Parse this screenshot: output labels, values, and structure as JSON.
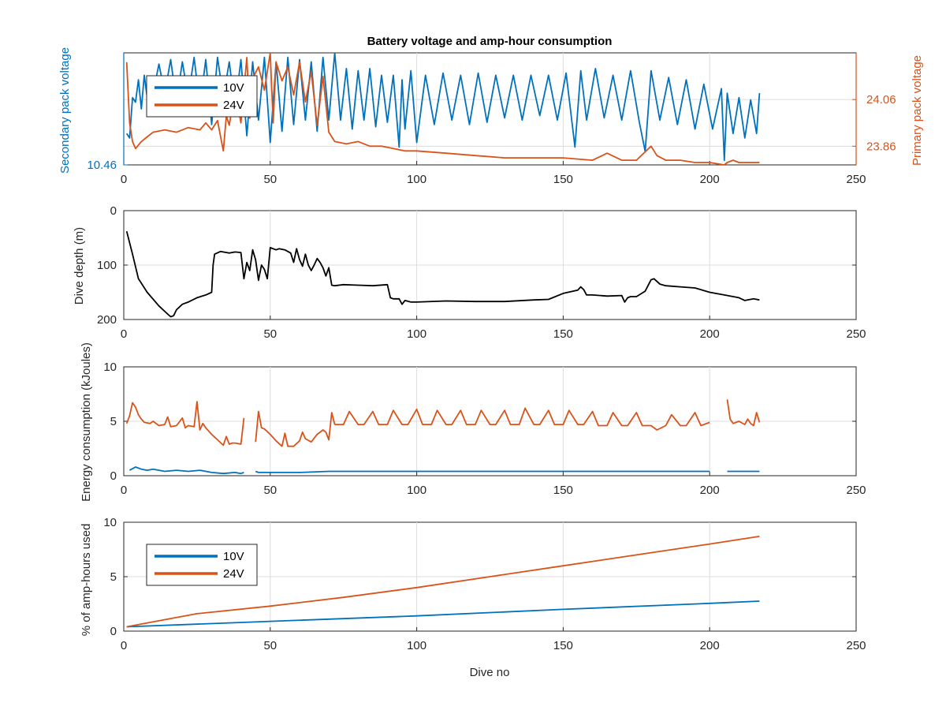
{
  "chart_data": [
    {
      "type": "line",
      "title": "Battery voltage and amp-hour consumption",
      "xlabel": "",
      "ylabel_left": "Secondary pack voltage",
      "ylabel_right": "Primary pack voltage",
      "xlim": [
        0,
        250
      ],
      "xticks": [
        "0",
        "50",
        "100",
        "150",
        "200",
        "250"
      ],
      "ylim_left": [
        10.46,
        10.51
      ],
      "yticks_left": [
        {
          "value": 10.46,
          "label": "10.46"
        }
      ],
      "ylim_right": [
        23.78,
        24.26
      ],
      "yticks_right": [
        {
          "value": 23.86,
          "label": "23.86"
        },
        {
          "value": 24.06,
          "label": "24.06"
        }
      ],
      "grid": true,
      "legend": {
        "position": "top-left",
        "entries": [
          "10V",
          "24V"
        ]
      },
      "colors": {
        "10V": "#0072BD",
        "24V": "#D95319"
      },
      "series": [
        {
          "name": "10V",
          "axis": "left",
          "x": [
            1,
            2,
            3,
            4,
            5,
            6,
            7,
            8,
            9,
            10,
            12,
            14,
            16,
            18,
            20,
            22,
            24,
            26,
            28,
            30,
            32,
            34,
            36,
            38,
            40,
            42,
            44,
            46,
            48,
            50,
            52,
            54,
            56,
            58,
            60,
            62,
            64,
            66,
            68,
            70,
            72,
            74,
            76,
            78,
            80,
            82,
            84,
            86,
            88,
            90,
            92,
            94,
            95,
            96,
            98,
            100,
            103,
            106,
            109,
            112,
            115,
            118,
            121,
            124,
            127,
            130,
            133,
            136,
            139,
            142,
            145,
            148,
            151,
            154,
            156,
            158,
            161,
            164,
            167,
            170,
            173,
            176,
            178,
            180,
            183,
            186,
            189,
            192,
            195,
            198,
            201,
            204,
            205,
            206,
            208,
            210,
            212,
            214,
            216,
            217
          ],
          "values": [
            10.474,
            10.472,
            10.49,
            10.488,
            10.498,
            10.485,
            10.5,
            10.49,
            10.496,
            10.492,
            10.505,
            10.492,
            10.507,
            10.488,
            10.506,
            10.49,
            10.508,
            10.486,
            10.507,
            10.478,
            10.508,
            10.49,
            10.506,
            10.485,
            10.507,
            10.473,
            10.506,
            10.48,
            10.508,
            10.47,
            10.506,
            10.475,
            10.508,
            10.478,
            10.507,
            10.48,
            10.506,
            10.475,
            10.508,
            10.48,
            10.51,
            10.48,
            10.503,
            10.476,
            10.502,
            10.48,
            10.503,
            10.477,
            10.5,
            10.479,
            10.5,
            10.468,
            10.498,
            10.476,
            10.502,
            10.47,
            10.5,
            10.478,
            10.501,
            10.48,
            10.5,
            10.478,
            10.501,
            10.479,
            10.5,
            10.481,
            10.5,
            10.48,
            10.5,
            10.482,
            10.5,
            10.48,
            10.501,
            10.468,
            10.502,
            10.48,
            10.503,
            10.481,
            10.5,
            10.48,
            10.502,
            10.479,
            10.466,
            10.502,
            10.48,
            10.499,
            10.478,
            10.498,
            10.476,
            10.496,
            10.476,
            10.494,
            10.462,
            10.492,
            10.474,
            10.49,
            10.472,
            10.489,
            10.474,
            10.492
          ]
        },
        {
          "name": "24V",
          "axis": "right",
          "x": [
            1,
            2,
            3,
            4,
            6,
            8,
            10,
            14,
            18,
            22,
            26,
            28,
            30,
            32,
            34,
            35,
            36,
            38,
            40,
            42,
            43,
            44,
            46,
            48,
            50,
            51,
            52,
            54,
            56,
            58,
            60,
            62,
            64,
            66,
            68,
            70,
            72,
            76,
            80,
            84,
            88,
            92,
            96,
            100,
            110,
            120,
            130,
            140,
            150,
            160,
            165,
            170,
            175,
            180,
            182,
            185,
            190,
            195,
            200,
            205,
            206,
            208,
            210,
            214,
            217
          ],
          "values": [
            24.22,
            23.96,
            23.88,
            23.85,
            23.88,
            23.9,
            23.92,
            23.93,
            23.92,
            23.94,
            23.93,
            23.96,
            23.93,
            23.97,
            23.84,
            23.99,
            23.95,
            24.1,
            23.96,
            24.24,
            23.98,
            24.15,
            24.2,
            24.1,
            24.26,
            23.96,
            24.22,
            24.14,
            24.2,
            24.08,
            24.22,
            24.05,
            24.18,
            23.95,
            24.16,
            23.92,
            23.88,
            23.87,
            23.88,
            23.86,
            23.86,
            23.85,
            23.84,
            23.84,
            23.83,
            23.82,
            23.81,
            23.81,
            23.81,
            23.8,
            23.83,
            23.8,
            23.8,
            23.86,
            23.82,
            23.8,
            23.8,
            23.79,
            23.79,
            23.78,
            23.79,
            23.8,
            23.79,
            23.79,
            23.79
          ]
        }
      ]
    },
    {
      "type": "line",
      "title": "",
      "xlabel": "",
      "ylabel": "Dive depth (m)",
      "xlim": [
        0,
        250
      ],
      "xticks": [
        "0",
        "50",
        "100",
        "150",
        "200",
        "250"
      ],
      "ylim": [
        0,
        200
      ],
      "y_reversed": true,
      "yticks": [
        "0",
        "100",
        "200"
      ],
      "grid": true,
      "colors": {
        "depth": "#000000"
      },
      "series": [
        {
          "x": [
            1,
            3,
            5,
            8,
            12,
            15,
            16,
            17,
            18,
            20,
            22,
            25,
            28,
            30,
            30.5,
            31,
            33,
            36,
            38,
            40,
            41,
            42,
            43,
            44,
            45,
            46,
            47,
            48,
            49,
            50,
            51,
            52,
            53,
            55,
            57,
            58,
            59,
            60,
            61,
            62,
            63,
            64,
            65,
            66,
            67,
            68,
            69,
            70,
            71,
            72,
            75,
            80,
            85,
            90,
            91,
            92,
            94,
            95,
            96,
            98,
            100,
            110,
            120,
            130,
            140,
            145,
            150,
            155,
            156,
            157,
            158,
            160,
            165,
            170,
            171,
            172,
            173,
            175,
            178,
            180,
            181,
            182,
            183,
            185,
            190,
            195,
            200,
            205,
            210,
            212,
            215,
            217
          ],
          "values": [
            38,
            80,
            125,
            150,
            175,
            190,
            195,
            193,
            182,
            172,
            168,
            160,
            155,
            150,
            100,
            80,
            75,
            78,
            76,
            77,
            125,
            95,
            110,
            72,
            90,
            128,
            100,
            108,
            125,
            68,
            70,
            72,
            70,
            72,
            78,
            95,
            70,
            90,
            102,
            80,
            100,
            110,
            100,
            88,
            95,
            105,
            120,
            105,
            137,
            138,
            136,
            137,
            138,
            136,
            160,
            162,
            162,
            172,
            165,
            168,
            168,
            166,
            167,
            167,
            164,
            163,
            152,
            146,
            140,
            145,
            155,
            155,
            157,
            156,
            168,
            160,
            158,
            158,
            148,
            127,
            125,
            130,
            135,
            138,
            140,
            142,
            150,
            155,
            160,
            165,
            162,
            164
          ]
        }
      ]
    },
    {
      "type": "line",
      "title": "",
      "xlabel": "",
      "ylabel": "Energy consumption (kJoules)",
      "xlim": [
        0,
        250
      ],
      "xticks": [
        "0",
        "50",
        "100",
        "150",
        "200",
        "250"
      ],
      "ylim": [
        0,
        10
      ],
      "yticks": [
        "0",
        "5",
        "10"
      ],
      "grid": true,
      "colors": {
        "10V": "#0072BD",
        "24V": "#D95319"
      },
      "series": [
        {
          "name": "10V",
          "segments": [
            {
              "x": [
                2,
                4,
                6,
                8,
                10,
                14,
                18,
                22,
                26,
                30,
                34,
                38,
                40,
                41
              ],
              "values": [
                0.5,
                0.8,
                0.6,
                0.5,
                0.6,
                0.4,
                0.5,
                0.4,
                0.5,
                0.3,
                0.2,
                0.3,
                0.2,
                0.3
              ]
            },
            {
              "x": [
                45,
                46,
                50,
                60,
                70,
                80,
                90,
                100,
                110,
                120,
                130,
                140,
                150,
                160,
                170,
                180,
                190,
                200
              ],
              "values": [
                0.4,
                0.3,
                0.3,
                0.3,
                0.4,
                0.4,
                0.4,
                0.4,
                0.4,
                0.4,
                0.4,
                0.4,
                0.4,
                0.4,
                0.4,
                0.4,
                0.4,
                0.4
              ]
            },
            {
              "x": [
                206,
                210,
                214,
                217
              ],
              "values": [
                0.4,
                0.4,
                0.4,
                0.4
              ]
            }
          ]
        },
        {
          "name": "24V",
          "segments": [
            {
              "x": [
                1,
                2,
                3,
                4,
                5,
                6,
                7,
                9,
                10,
                12,
                14,
                15,
                16,
                18,
                20,
                21,
                22,
                24,
                25,
                26,
                27,
                28,
                30,
                32,
                34,
                35,
                36,
                37,
                38,
                40,
                41
              ],
              "values": [
                4.8,
                5.5,
                6.7,
                6.3,
                5.6,
                5.2,
                4.9,
                4.8,
                5.0,
                4.6,
                4.7,
                5.4,
                4.5,
                4.6,
                5.3,
                4.4,
                4.6,
                4.5,
                6.8,
                4.2,
                4.8,
                4.4,
                3.8,
                3.3,
                2.8,
                3.6,
                2.9,
                3.0,
                3.0,
                2.9,
                5.3
              ]
            },
            {
              "x": [
                45,
                46,
                47,
                48,
                50,
                52,
                54,
                55,
                56,
                58,
                60,
                61,
                62,
                64,
                66,
                68,
                69,
                70,
                71,
                72
              ],
              "values": [
                3.1,
                5.9,
                4.4,
                4.3,
                3.8,
                3.2,
                2.7,
                3.9,
                2.7,
                2.7,
                3.2,
                4.0,
                3.4,
                3.1,
                3.8,
                4.2,
                4.0,
                3.3,
                5.8,
                4.7
              ]
            },
            {
              "x": [
                72,
                75,
                77,
                80,
                82,
                85,
                87,
                90,
                92,
                95,
                97,
                100,
                102,
                105,
                107,
                110,
                112,
                115,
                117,
                120,
                122,
                125,
                127,
                130,
                132,
                135,
                137,
                140,
                142,
                145,
                147,
                150,
                152,
                155,
                157,
                160,
                162,
                165,
                167,
                170,
                172,
                175,
                177,
                180,
                182,
                185,
                187,
                190,
                192,
                195,
                197,
                200
              ],
              "values": [
                4.7,
                4.7,
                5.9,
                4.7,
                4.7,
                5.9,
                4.7,
                4.7,
                6.0,
                4.7,
                4.7,
                6.1,
                4.7,
                4.7,
                6.0,
                4.7,
                4.7,
                6.0,
                4.7,
                4.7,
                6.0,
                4.7,
                4.7,
                6.0,
                4.7,
                4.7,
                6.2,
                4.7,
                4.7,
                6.0,
                4.7,
                4.7,
                6.0,
                4.7,
                4.7,
                5.9,
                4.6,
                4.6,
                5.8,
                4.6,
                4.6,
                5.8,
                4.6,
                4.6,
                4.2,
                4.6,
                5.6,
                4.6,
                4.6,
                5.8,
                4.6,
                4.9
              ]
            },
            {
              "x": [
                206,
                207,
                208,
                210,
                212,
                213,
                214,
                215,
                216,
                217
              ],
              "values": [
                7.0,
                5.2,
                4.8,
                5.0,
                4.7,
                5.2,
                4.8,
                4.6,
                5.8,
                4.9
              ]
            }
          ]
        }
      ]
    },
    {
      "type": "line",
      "title": "",
      "xlabel": "Dive no",
      "ylabel": "% of amp-hours used",
      "xlim": [
        0,
        250
      ],
      "xticks": [
        "0",
        "50",
        "100",
        "150",
        "200",
        "250"
      ],
      "ylim": [
        0,
        10
      ],
      "yticks": [
        "0",
        "5",
        "10"
      ],
      "grid": true,
      "legend": {
        "position": "upper-left",
        "entries": [
          "10V",
          "24V"
        ]
      },
      "colors": {
        "10V": "#0072BD",
        "24V": "#D95319"
      },
      "series": [
        {
          "name": "10V",
          "x": [
            1,
            50,
            100,
            150,
            200,
            217
          ],
          "values": [
            0.4,
            0.9,
            1.4,
            2.0,
            2.55,
            2.75
          ]
        },
        {
          "name": "24V",
          "x": [
            1,
            25,
            50,
            75,
            100,
            125,
            150,
            175,
            200,
            217
          ],
          "values": [
            0.4,
            1.6,
            2.3,
            3.1,
            4.0,
            5.0,
            6.0,
            7.0,
            8.0,
            8.7
          ]
        }
      ]
    }
  ]
}
